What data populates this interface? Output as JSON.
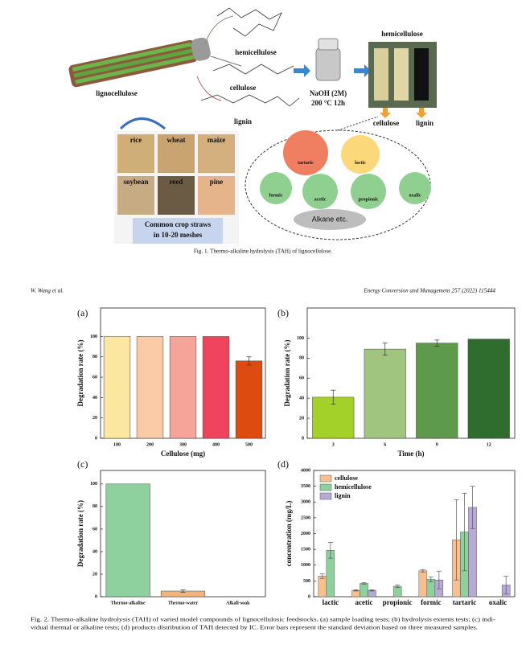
{
  "diagram": {
    "components": [
      "hemicellulose",
      "cellulose",
      "lignin"
    ],
    "source": "lignocellulose",
    "reagent": "NaOH (2M)",
    "conditions": "200 °C 12h",
    "outputs": [
      "hemicellulose",
      "cellulose",
      "lignin"
    ],
    "straws": [
      "rice",
      "wheat",
      "maize",
      "soybean",
      "reed",
      "pine"
    ],
    "straw_caption": [
      "Common crop straws",
      "in 10-20 meshes"
    ],
    "products": [
      "tartaric",
      "lactic",
      "formic",
      "acetic",
      "propionic",
      "oxalic"
    ],
    "other": "Alkane etc.",
    "caption": "Fig. 1. Thermo-alkaline hydrolysis (TAH) of lignocellulose."
  },
  "running_header": {
    "author": "W. Wang et al.",
    "journal": "Energy Conversion and Management 257 (2022) 115444"
  },
  "chart_data": [
    {
      "type": "bar",
      "panel": "(a)",
      "xlabel": "Cellulose (mg)",
      "ylabel": "Degradation rate (%)",
      "categories": [
        "100",
        "200",
        "300",
        "400",
        "500"
      ],
      "values": [
        100,
        100,
        100,
        100,
        76
      ],
      "errors": [
        null,
        null,
        null,
        null,
        4
      ],
      "colors": [
        "#fbe6a2",
        "#fbcaa6",
        "#f6a49a",
        "#f0445e",
        "#dd4b10"
      ],
      "ylim": [
        0,
        128
      ],
      "yticks": [
        0,
        20,
        40,
        60,
        80,
        100
      ]
    },
    {
      "type": "bar",
      "panel": "(b)",
      "xlabel": "Time (h)",
      "ylabel": "Degradation rate (%)",
      "categories": [
        "3",
        "6",
        "9",
        "12"
      ],
      "values": [
        41,
        89,
        95,
        99
      ],
      "errors": [
        7,
        6,
        3,
        null
      ],
      "colors": [
        "#a3d12a",
        "#9fc57e",
        "#5e9a4c",
        "#2f6d2f"
      ],
      "ylim": [
        0,
        130
      ],
      "yticks": [
        0,
        20,
        40,
        60,
        80,
        100
      ]
    },
    {
      "type": "bar",
      "panel": "(c)",
      "ylabel": "Degradation rate (%)",
      "categories": [
        "Thermo-alkaline",
        "Thermo-water",
        "Alkali-soak"
      ],
      "values": [
        100,
        5,
        0
      ],
      "errors": [
        null,
        1,
        null
      ],
      "colors": [
        "#8fd19e",
        "#f2b47a",
        "#b9a9d6"
      ],
      "ylim": [
        0,
        112
      ],
      "yticks": [
        0,
        20,
        40,
        60,
        80,
        100
      ]
    },
    {
      "type": "bar",
      "panel": "(d)",
      "ylabel": "concentration (mg/L)",
      "categories": [
        "lactic",
        "acetic",
        "propionic",
        "formic",
        "tartaric",
        "oxalic"
      ],
      "series": [
        {
          "name": "cellulose",
          "color": "#f9c08f",
          "values": [
            650,
            200,
            0,
            820,
            1800,
            0
          ],
          "errors": [
            70,
            20,
            null,
            40,
            1270,
            null
          ]
        },
        {
          "name": "hemicellulose",
          "color": "#8fd19e",
          "values": [
            1470,
            420,
            330,
            550,
            2050,
            0
          ],
          "errors": [
            250,
            20,
            40,
            80,
            1230,
            null
          ]
        },
        {
          "name": "lignin",
          "color": "#b9a9d6",
          "values": [
            0,
            200,
            0,
            530,
            2830,
            370
          ],
          "errors": [
            null,
            20,
            null,
            280,
            670,
            280
          ]
        }
      ],
      "ylim": [
        0,
        4000
      ],
      "yticks": [
        0,
        500,
        1000,
        1500,
        2000,
        2500,
        3000,
        3500,
        4000
      ],
      "legend": "upper left"
    }
  ],
  "caption2": [
    "Fig. 2. Thermo-alkaline hydrolysis (TAH) of varied model compounds of lignocellulosic feedstocks. (a) sample loading tests; (b) hydrolysis extents tests; (c) indi-",
    "vidual thermal or alkaline tests; (d) products distribution of TAH detected by IC. Error bars represent the standard deviation based on three measured samples."
  ]
}
